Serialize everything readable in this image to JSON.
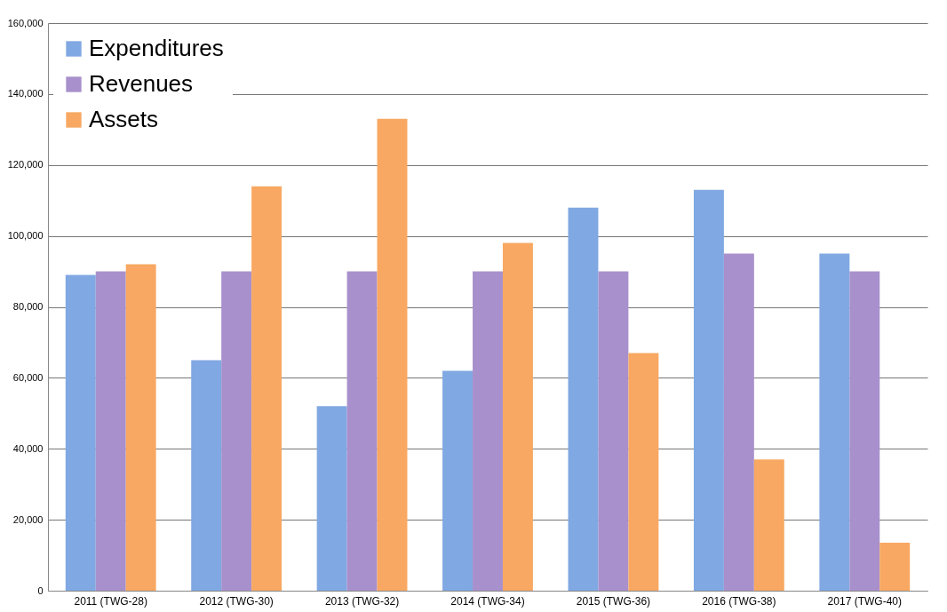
{
  "chart_data": {
    "type": "bar",
    "categories": [
      "2011 (TWG-28)",
      "2012 (TWG-30)",
      "2013 (TWG-32)",
      "2014 (TWG-34)",
      "2015 (TWG-36)",
      "2016 (TWG-38)",
      "2017 (TWG-40)"
    ],
    "series": [
      {
        "name": "Expenditures",
        "color": "#80a8e2",
        "values": [
          89000,
          65000,
          52000,
          62000,
          108000,
          113000,
          95000
        ]
      },
      {
        "name": "Revenues",
        "color": "#a890cc",
        "values": [
          90000,
          90000,
          90000,
          90000,
          90000,
          95000,
          90000
        ]
      },
      {
        "name": "Assets",
        "color": "#f8a862",
        "values": [
          92000,
          114000,
          133000,
          98000,
          67000,
          37000,
          13500
        ]
      }
    ],
    "ylim": [
      0,
      160000
    ],
    "yticks": [
      0,
      {
        "value": 20000,
        "label": "20,000"
      },
      {
        "value": 40000,
        "label": "40,000"
      },
      {
        "value": 60000,
        "label": "60,000"
      },
      {
        "value": 80000,
        "label": "80,000"
      },
      {
        "value": 100000,
        "label": "100,000"
      },
      {
        "value": 120000,
        "label": "120,000"
      },
      {
        "value": 140000,
        "label": "140,000"
      },
      {
        "value": 160000,
        "label": "160,000"
      }
    ],
    "grid": "y",
    "legend": "top left"
  }
}
